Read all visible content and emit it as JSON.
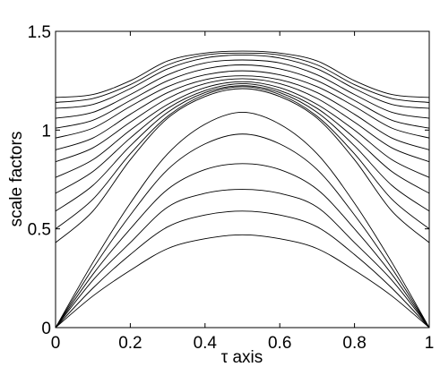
{
  "chart_data": {
    "type": "line",
    "xlabel": "τ axis",
    "ylabel": "scale factors",
    "xlim": [
      0,
      1
    ],
    "ylim": [
      0,
      1.5
    ],
    "xticks": [
      0,
      0.2,
      0.4,
      0.6,
      0.8,
      1
    ],
    "yticks": [
      0,
      0.5,
      1,
      1.5
    ],
    "xtick_labels": [
      "0",
      "0.2",
      "0.4",
      "0.6",
      "0.8",
      "1"
    ],
    "ytick_labels": [
      "0",
      "0.5",
      "1",
      "1.5"
    ],
    "grid": false,
    "legend": "none",
    "line_color": "#000000",
    "x": [
      0,
      0.1,
      0.2,
      0.3,
      0.4,
      0.5,
      0.6,
      0.7,
      0.8,
      0.9,
      1
    ],
    "series": [
      {
        "values": [
          1.165,
          1.18,
          1.25,
          1.35,
          1.39,
          1.4,
          1.39,
          1.35,
          1.25,
          1.18,
          1.165
        ]
      },
      {
        "values": [
          1.14,
          1.16,
          1.23,
          1.33,
          1.38,
          1.39,
          1.38,
          1.33,
          1.23,
          1.16,
          1.14
        ]
      },
      {
        "values": [
          1.11,
          1.13,
          1.21,
          1.31,
          1.365,
          1.38,
          1.365,
          1.31,
          1.21,
          1.13,
          1.11
        ]
      },
      {
        "values": [
          1.06,
          1.09,
          1.18,
          1.28,
          1.34,
          1.355,
          1.34,
          1.28,
          1.18,
          1.09,
          1.06
        ]
      },
      {
        "values": [
          1.01,
          1.05,
          1.15,
          1.25,
          1.31,
          1.33,
          1.31,
          1.25,
          1.15,
          1.05,
          1.01
        ]
      },
      {
        "values": [
          0.96,
          1.01,
          1.12,
          1.22,
          1.28,
          1.3,
          1.28,
          1.22,
          1.12,
          1.01,
          0.96
        ]
      },
      {
        "values": [
          0.9,
          0.96,
          1.08,
          1.19,
          1.255,
          1.275,
          1.255,
          1.19,
          1.08,
          0.96,
          0.9
        ]
      },
      {
        "values": [
          0.84,
          0.91,
          1.04,
          1.16,
          1.235,
          1.26,
          1.235,
          1.16,
          1.04,
          0.91,
          0.84
        ]
      },
      {
        "values": [
          0.76,
          0.85,
          1.0,
          1.13,
          1.215,
          1.245,
          1.215,
          1.13,
          1.0,
          0.85,
          0.76
        ]
      },
      {
        "values": [
          0.68,
          0.79,
          0.96,
          1.11,
          1.2,
          1.235,
          1.2,
          1.11,
          0.96,
          0.79,
          0.68
        ]
      },
      {
        "values": [
          0.59,
          0.72,
          0.92,
          1.09,
          1.19,
          1.225,
          1.19,
          1.09,
          0.92,
          0.72,
          0.59
        ]
      },
      {
        "values": [
          0.5,
          0.65,
          0.88,
          1.07,
          1.18,
          1.22,
          1.18,
          1.07,
          0.88,
          0.65,
          0.5
        ]
      },
      {
        "values": [
          0.43,
          0.59,
          0.85,
          1.06,
          1.17,
          1.21,
          1.17,
          1.06,
          0.85,
          0.59,
          0.43
        ]
      },
      {
        "values": [
          0,
          0.33,
          0.63,
          0.88,
          1.03,
          1.09,
          1.03,
          0.88,
          0.63,
          0.33,
          0
        ]
      },
      {
        "values": [
          0,
          0.3,
          0.57,
          0.8,
          0.93,
          0.98,
          0.93,
          0.8,
          0.57,
          0.3,
          0
        ]
      },
      {
        "values": [
          0,
          0.27,
          0.5,
          0.7,
          0.8,
          0.83,
          0.8,
          0.7,
          0.5,
          0.27,
          0
        ]
      },
      {
        "values": [
          0,
          0.24,
          0.43,
          0.61,
          0.68,
          0.7,
          0.68,
          0.61,
          0.43,
          0.24,
          0
        ]
      },
      {
        "values": [
          0,
          0.2,
          0.37,
          0.51,
          0.57,
          0.59,
          0.57,
          0.51,
          0.37,
          0.2,
          0
        ]
      },
      {
        "values": [
          0,
          0.16,
          0.29,
          0.4,
          0.45,
          0.47,
          0.45,
          0.4,
          0.29,
          0.16,
          0
        ]
      }
    ]
  }
}
